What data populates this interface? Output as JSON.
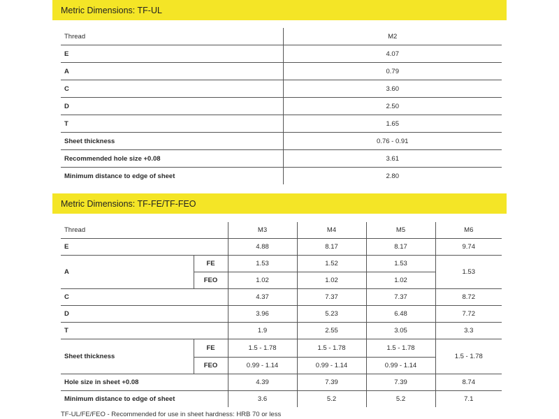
{
  "tfu": {
    "title": "Metric Dimensions: TF-UL",
    "header": {
      "label": "Thread",
      "value": "M2"
    },
    "rows": [
      {
        "label": "E",
        "value": "4.07"
      },
      {
        "label": "A",
        "value": "0.79"
      },
      {
        "label": "C",
        "value": "3.60"
      },
      {
        "label": "D",
        "value": "2.50"
      },
      {
        "label": "T",
        "value": "1.65"
      },
      {
        "label": "Sheet thickness",
        "value": "0.76 - 0.91"
      },
      {
        "label": "Recommended hole size +0.08",
        "value": "3.61"
      },
      {
        "label": "Minimum distance to edge of sheet",
        "value": "2.80"
      }
    ]
  },
  "tffe": {
    "title": "Metric Dimensions: TF-FE/TF-FEO",
    "header": {
      "label": "Thread",
      "cols": [
        "M3",
        "M4",
        "M5",
        "M6"
      ]
    },
    "e": {
      "label": "E",
      "values": [
        "4.88",
        "8.17",
        "8.17",
        "9.74"
      ]
    },
    "a": {
      "label": "A",
      "fe": "FE",
      "feo": "FEO",
      "fe_values": [
        "1.53",
        "1.52",
        "1.53"
      ],
      "feo_values": [
        "1.02",
        "1.02",
        "1.02"
      ],
      "m6": "1.53"
    },
    "c": {
      "label": "C",
      "values": [
        "4.37",
        "7.37",
        "7.37",
        "8.72"
      ]
    },
    "d": {
      "label": "D",
      "values": [
        "3.96",
        "5.23",
        "6.48",
        "7.72"
      ]
    },
    "t": {
      "label": "T",
      "values": [
        "1.9",
        "2.55",
        "3.05",
        "3.3"
      ]
    },
    "sheet": {
      "label": "Sheet thickness",
      "fe": "FE",
      "feo": "FEO",
      "fe_values": [
        "1.5 - 1.78",
        "1.5 - 1.78",
        "1.5 - 1.78"
      ],
      "feo_values": [
        "0.99 - 1.14",
        "0.99 - 1.14",
        "0.99 - 1.14"
      ],
      "m6": "1.5 - 1.78"
    },
    "hole": {
      "label": "Hole size in sheet +0.08",
      "values": [
        "4.39",
        "7.39",
        "7.39",
        "8.74"
      ]
    },
    "min": {
      "label": "Minimum distance to edge of sheet",
      "values": [
        "3.6",
        "5.2",
        "5.2",
        "7.1"
      ]
    }
  },
  "footnote": "TF-UL/FE/FEO - Recommended for use in sheet hardness: HRB 70 or less",
  "colors": {
    "accent": "#f4e526"
  }
}
